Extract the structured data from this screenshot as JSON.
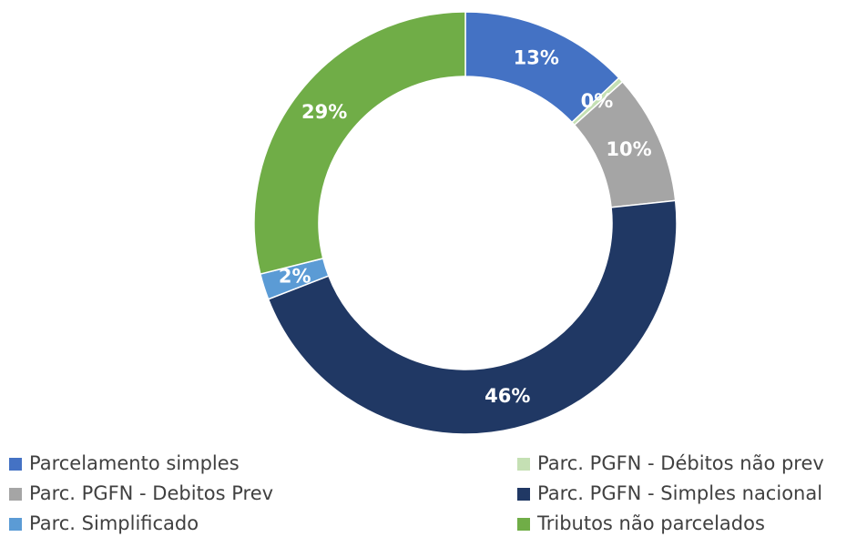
{
  "chart_data": {
    "type": "donut",
    "categories": [
      "Parcelamento simples",
      "Parc. PGFN - Débitos não prev",
      "Parc. PGFN - Debitos Prev",
      "Parc. PGFN - Simples nacional",
      "Parc. Simplificado",
      "Tributos não parcelados"
    ],
    "values": [
      13,
      0.4,
      10,
      46,
      2,
      29
    ],
    "value_labels": [
      "13%",
      "0%",
      "10%",
      "46%",
      "2%",
      "29%"
    ],
    "colors": [
      "#4472c4",
      "#c5e0b4",
      "#a5a5a5",
      "#203864",
      "#5b9bd5",
      "#70ad47"
    ],
    "legend": "bottom"
  }
}
